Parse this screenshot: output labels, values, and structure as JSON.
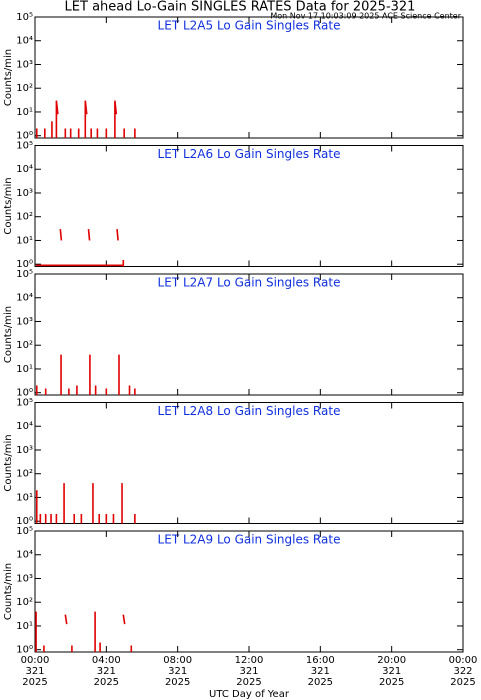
{
  "header": {
    "title": "LET ahead Lo-Gain SINGLES RATES Data for 2025-321",
    "timestamp": "Mon Nov 17 10:03:09 2025 ACE Science Center"
  },
  "x_axis": {
    "label": "UTC Day of Year",
    "xlim": [
      0,
      24
    ],
    "xticks": [
      {
        "value": 0,
        "label": "00:00"
      },
      {
        "value": 4,
        "label": "04:00"
      },
      {
        "value": 8,
        "label": "08:00"
      },
      {
        "value": 12,
        "label": "12:00"
      },
      {
        "value": 16,
        "label": "16:00"
      },
      {
        "value": 20,
        "label": "20:00"
      },
      {
        "value": 24,
        "label": "00:00"
      }
    ],
    "xtick_days": [
      "321",
      "321",
      "321",
      "321",
      "321",
      "321",
      "322"
    ],
    "xtick_years": [
      "2025",
      "2025",
      "2025",
      "2025",
      "2025",
      "2025",
      "2025"
    ]
  },
  "chart_data": [
    {
      "type": "line",
      "title": "LET L2A5 Lo Gain Singles Rate",
      "y_label": "Counts/min",
      "log_scale": true,
      "ylim": [
        0.8,
        100000
      ],
      "yticks": [
        {
          "value": 1,
          "label": "10⁰"
        },
        {
          "value": 10,
          "label": "10¹"
        },
        {
          "value": 100,
          "label": "10²"
        },
        {
          "value": 1000,
          "label": "10³"
        },
        {
          "value": 10000,
          "label": "10⁴"
        },
        {
          "value": 100000,
          "label": "10⁵"
        }
      ],
      "series": [
        {
          "color": "#e00000",
          "x": [
            0.1,
            0.1,
            null,
            0.55,
            0.55,
            null,
            0.95,
            0.95,
            null,
            1.2,
            1.2,
            1.28,
            null,
            1.7,
            1.7,
            null,
            2.0,
            2.0,
            null,
            2.45,
            2.45,
            null,
            2.82,
            2.82,
            2.9,
            null,
            3.15,
            3.15,
            null,
            3.5,
            3.5,
            null,
            4.0,
            4.0,
            null,
            4.48,
            4.48,
            4.56,
            null,
            5.0,
            5.0,
            null,
            5.6,
            5.6
          ],
          "values": [
            0.8,
            2,
            null,
            0.8,
            2,
            null,
            0.8,
            4,
            null,
            0.8,
            30,
            8,
            null,
            0.8,
            2,
            null,
            0.8,
            2,
            null,
            0.8,
            2,
            null,
            0.8,
            30,
            8,
            null,
            0.8,
            2,
            null,
            0.8,
            2,
            null,
            0.8,
            2,
            null,
            0.8,
            30,
            8,
            null,
            0.8,
            2,
            null,
            0.8,
            2
          ]
        }
      ]
    },
    {
      "type": "line",
      "title": "LET L2A6 Lo Gain Singles Rate",
      "y_label": "Counts/min",
      "log_scale": true,
      "ylim": [
        0.8,
        100000
      ],
      "yticks": [
        {
          "value": 1,
          "label": "10⁰"
        },
        {
          "value": 10,
          "label": "10¹"
        },
        {
          "value": 100,
          "label": "10²"
        },
        {
          "value": 1000,
          "label": "10³"
        },
        {
          "value": 10000,
          "label": "10⁴"
        },
        {
          "value": 100000,
          "label": "10⁵"
        }
      ],
      "series": [
        {
          "color": "#e00000",
          "x": [
            0.05,
            4.9,
            null,
            1.42,
            1.48,
            null,
            3.0,
            3.06,
            null,
            4.6,
            4.66,
            null,
            4.95,
            4.95
          ],
          "values": [
            0.9,
            0.9,
            null,
            30,
            10,
            null,
            30,
            10,
            null,
            30,
            10,
            null,
            0.8,
            1.5
          ]
        }
      ]
    },
    {
      "type": "line",
      "title": "LET L2A7 Lo Gain Singles Rate",
      "y_label": "Counts/min",
      "log_scale": true,
      "ylim": [
        0.8,
        100000
      ],
      "yticks": [
        {
          "value": 1,
          "label": "10⁰"
        },
        {
          "value": 10,
          "label": "10¹"
        },
        {
          "value": 100,
          "label": "10²"
        },
        {
          "value": 1000,
          "label": "10³"
        },
        {
          "value": 10000,
          "label": "10⁴"
        },
        {
          "value": 100000,
          "label": "10⁵"
        }
      ],
      "series": [
        {
          "color": "#e00000",
          "x": [
            0.1,
            0.1,
            null,
            0.6,
            0.6,
            null,
            1.46,
            1.46,
            null,
            1.9,
            1.9,
            null,
            2.35,
            2.35,
            null,
            3.08,
            3.08,
            null,
            3.4,
            3.4,
            null,
            4.0,
            4.0,
            null,
            4.71,
            4.71,
            null,
            5.3,
            5.3,
            null,
            5.6,
            5.6
          ],
          "values": [
            0.8,
            2,
            null,
            0.8,
            1.5,
            null,
            0.8,
            40,
            null,
            0.8,
            1.5,
            null,
            0.8,
            2,
            null,
            0.8,
            40,
            null,
            0.8,
            2,
            null,
            0.8,
            1.5,
            null,
            0.8,
            40,
            null,
            0.8,
            2,
            null,
            0.8,
            1.5
          ]
        }
      ]
    },
    {
      "type": "line",
      "title": "LET L2A8 Lo Gain Singles Rate",
      "y_label": "Counts/min",
      "log_scale": true,
      "ylim": [
        0.8,
        100000
      ],
      "yticks": [
        {
          "value": 1,
          "label": "10⁰"
        },
        {
          "value": 10,
          "label": "10¹"
        },
        {
          "value": 100,
          "label": "10²"
        },
        {
          "value": 1000,
          "label": "10³"
        },
        {
          "value": 10000,
          "label": "10⁴"
        },
        {
          "value": 100000,
          "label": "10⁵"
        }
      ],
      "series": [
        {
          "color": "#e00000",
          "x": [
            0.1,
            0.1,
            null,
            0.3,
            0.3,
            null,
            0.6,
            0.6,
            null,
            0.9,
            0.9,
            null,
            1.2,
            1.2,
            null,
            1.63,
            1.63,
            null,
            2.2,
            2.2,
            null,
            2.6,
            2.6,
            null,
            3.25,
            3.25,
            null,
            3.6,
            3.6,
            null,
            4.0,
            4.0,
            null,
            4.4,
            4.4,
            null,
            4.88,
            4.88,
            null,
            5.6,
            5.6
          ],
          "values": [
            0.8,
            20,
            null,
            0.8,
            2,
            null,
            0.8,
            2,
            null,
            0.8,
            2,
            null,
            0.8,
            2,
            null,
            0.8,
            40,
            null,
            0.8,
            2,
            null,
            0.8,
            2,
            null,
            0.8,
            40,
            null,
            0.8,
            2,
            null,
            0.8,
            2,
            null,
            0.8,
            2,
            null,
            0.8,
            40,
            null,
            0.8,
            2
          ]
        }
      ]
    },
    {
      "type": "line",
      "title": "LET L2A9 Lo Gain Singles Rate",
      "y_label": "Counts/min",
      "log_scale": true,
      "ylim": [
        0.8,
        100000
      ],
      "yticks": [
        {
          "value": 1,
          "label": "10⁰"
        },
        {
          "value": 10,
          "label": "10¹"
        },
        {
          "value": 100,
          "label": "10²"
        },
        {
          "value": 1000,
          "label": "10³"
        },
        {
          "value": 10000,
          "label": "10⁴"
        },
        {
          "value": 100000,
          "label": "10⁵"
        }
      ],
      "series": [
        {
          "color": "#e00000",
          "x": [
            0.06,
            0.06,
            null,
            0.5,
            0.5,
            null,
            1.7,
            1.78,
            null,
            2.07,
            2.07,
            null,
            3.37,
            3.37,
            null,
            3.65,
            3.65,
            null,
            4.95,
            5.03,
            null,
            5.4,
            5.4
          ],
          "values": [
            0.8,
            40,
            null,
            0.8,
            1.5,
            null,
            30,
            12,
            null,
            0.8,
            1.5,
            null,
            0.8,
            40,
            null,
            0.8,
            2,
            null,
            30,
            12,
            null,
            0.8,
            1.5
          ]
        }
      ]
    }
  ]
}
